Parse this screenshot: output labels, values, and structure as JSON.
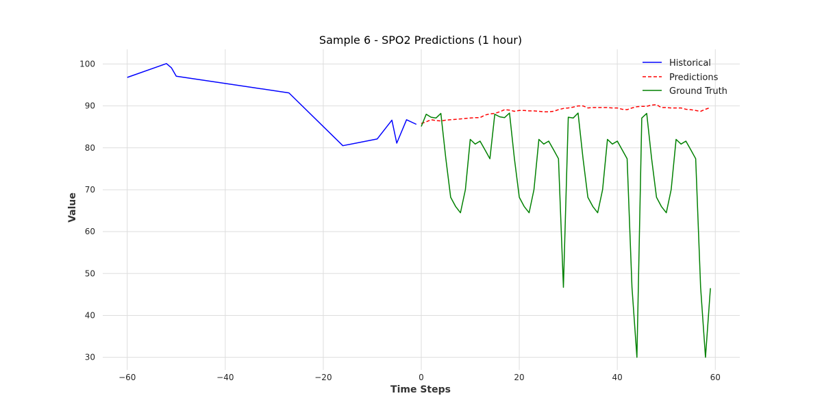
{
  "chart_data": {
    "type": "line",
    "title": "Sample 6 - SPO2 Predictions (1 hour)",
    "xlabel": "Time Steps",
    "ylabel": "Value",
    "xlim": [
      -65,
      65
    ],
    "ylim": [
      27,
      103.5
    ],
    "xticks": [
      -60,
      -40,
      -20,
      0,
      20,
      40,
      60
    ],
    "yticks": [
      30,
      40,
      50,
      60,
      70,
      80,
      90,
      100
    ],
    "grid": true,
    "legend_position": "top-right",
    "series": [
      {
        "name": "Historical",
        "color": "#0000ff",
        "dash": "solid",
        "points": [
          [
            -60,
            96.8
          ],
          [
            -52,
            100.1
          ],
          [
            -51,
            99.1
          ],
          [
            -50,
            97.1
          ],
          [
            -27,
            93.1
          ],
          [
            -16,
            80.5
          ],
          [
            -9,
            82.1
          ],
          [
            -6,
            86.6
          ],
          [
            -5,
            81.1
          ],
          [
            -3,
            86.7
          ],
          [
            -1,
            85.6
          ]
        ]
      },
      {
        "name": "Predictions",
        "color": "#ff0000",
        "dash": "dashed",
        "points": [
          [
            0,
            85.8
          ],
          [
            1,
            86.2
          ],
          [
            2,
            86.7
          ],
          [
            3,
            86.5
          ],
          [
            4,
            86.4
          ],
          [
            5,
            86.6
          ],
          [
            6,
            86.7
          ],
          [
            7,
            86.8
          ],
          [
            8,
            86.9
          ],
          [
            9,
            87.0
          ],
          [
            10,
            87.1
          ],
          [
            11,
            87.2
          ],
          [
            12,
            87.2
          ],
          [
            13,
            87.8
          ],
          [
            14,
            88.1
          ],
          [
            15,
            88.2
          ],
          [
            16,
            88.6
          ],
          [
            17,
            89.1
          ],
          [
            18,
            89.0
          ],
          [
            19,
            88.7
          ],
          [
            20,
            88.9
          ],
          [
            21,
            88.9
          ],
          [
            22,
            88.8
          ],
          [
            23,
            88.8
          ],
          [
            24,
            88.7
          ],
          [
            25,
            88.6
          ],
          [
            26,
            88.6
          ],
          [
            27,
            88.7
          ],
          [
            28,
            89.1
          ],
          [
            29,
            89.4
          ],
          [
            30,
            89.5
          ],
          [
            31,
            89.7
          ],
          [
            32,
            90.0
          ],
          [
            33,
            90.0
          ],
          [
            34,
            89.5
          ],
          [
            35,
            89.6
          ],
          [
            36,
            89.6
          ],
          [
            37,
            89.6
          ],
          [
            38,
            89.6
          ],
          [
            39,
            89.5
          ],
          [
            40,
            89.5
          ],
          [
            41,
            89.2
          ],
          [
            42,
            89.1
          ],
          [
            43,
            89.5
          ],
          [
            44,
            89.8
          ],
          [
            45,
            89.9
          ],
          [
            46,
            89.9
          ],
          [
            47,
            90.2
          ],
          [
            48,
            90.3
          ],
          [
            49,
            89.6
          ],
          [
            50,
            89.6
          ],
          [
            51,
            89.5
          ],
          [
            52,
            89.5
          ],
          [
            53,
            89.5
          ],
          [
            54,
            89.2
          ],
          [
            55,
            89.1
          ],
          [
            56,
            88.9
          ],
          [
            57,
            88.7
          ],
          [
            58,
            89.2
          ],
          [
            59,
            89.6
          ]
        ]
      },
      {
        "name": "Ground Truth",
        "color": "#008000",
        "dash": "solid",
        "points": [
          [
            0,
            85.1
          ],
          [
            1,
            88.0
          ],
          [
            2,
            87.3
          ],
          [
            3,
            87.1
          ],
          [
            4,
            88.2
          ],
          [
            5,
            77.5
          ],
          [
            6,
            68.2
          ],
          [
            7,
            66.0
          ],
          [
            8,
            64.5
          ],
          [
            9,
            70.0
          ],
          [
            10,
            82.0
          ],
          [
            11,
            80.9
          ],
          [
            12,
            81.6
          ],
          [
            13,
            79.5
          ],
          [
            14,
            77.4
          ],
          [
            15,
            88.0
          ],
          [
            16,
            87.4
          ],
          [
            17,
            87.2
          ],
          [
            18,
            88.3
          ],
          [
            19,
            77.5
          ],
          [
            20,
            68.2
          ],
          [
            21,
            66.0
          ],
          [
            22,
            64.5
          ],
          [
            23,
            70.0
          ],
          [
            24,
            82.0
          ],
          [
            25,
            80.9
          ],
          [
            26,
            81.6
          ],
          [
            27,
            79.5
          ],
          [
            28,
            77.4
          ],
          [
            29,
            46.7
          ],
          [
            30,
            87.3
          ],
          [
            31,
            87.1
          ],
          [
            32,
            88.3
          ],
          [
            33,
            77.5
          ],
          [
            34,
            68.2
          ],
          [
            35,
            66.0
          ],
          [
            36,
            64.5
          ],
          [
            37,
            70.0
          ],
          [
            38,
            82.0
          ],
          [
            39,
            80.9
          ],
          [
            40,
            81.6
          ],
          [
            41,
            79.5
          ],
          [
            42,
            77.4
          ],
          [
            43,
            46.7
          ],
          [
            44,
            30.0
          ],
          [
            45,
            87.1
          ],
          [
            46,
            88.2
          ],
          [
            47,
            77.5
          ],
          [
            48,
            68.2
          ],
          [
            49,
            66.0
          ],
          [
            50,
            64.5
          ],
          [
            51,
            70.0
          ],
          [
            52,
            82.0
          ],
          [
            53,
            80.9
          ],
          [
            54,
            81.6
          ],
          [
            55,
            79.5
          ],
          [
            56,
            77.4
          ],
          [
            57,
            46.7
          ],
          [
            58,
            30.0
          ],
          [
            59,
            46.5
          ]
        ]
      }
    ]
  }
}
